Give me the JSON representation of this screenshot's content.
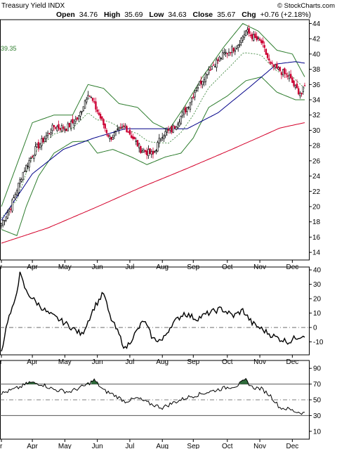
{
  "header": {
    "watermark": "© StockCharts.com",
    "ticker": "Treasury Yield INDX",
    "open_label": "Open",
    "open": "34.76",
    "high_label": "High",
    "high": "35.69",
    "low_label": "Low",
    "low": "34.63",
    "close_label": "Close",
    "close": "35.67",
    "chg_label": "Chg",
    "chg": "+0.76 (+2.18%)",
    "left_marker": "39.35"
  },
  "colors": {
    "up_candle": "#000000",
    "down_candle": "#cc0033",
    "bollinger": "#2e7d2e",
    "ma_mid": "#000088",
    "ma_long": "#d4002a",
    "indicator": "#000000",
    "rsi_fill": "#2e6b3a"
  },
  "chart_data": [
    {
      "type": "candlestick",
      "title": "Treasury Yield INDX",
      "y_ticks": [
        14,
        16,
        18,
        20,
        22,
        24,
        26,
        28,
        30,
        32,
        34,
        36,
        38,
        40,
        42,
        44
      ],
      "ylim": [
        13,
        44.5
      ],
      "x_ticks": [
        "Mar",
        "Apr",
        "May",
        "Jun",
        "Jul",
        "Aug",
        "Sep",
        "Oct",
        "Nov",
        "Dec"
      ],
      "close_keypoints": [
        [
          0,
          17.8
        ],
        [
          6,
          20
        ],
        [
          14,
          24.5
        ],
        [
          22,
          27.5
        ],
        [
          34,
          30.5
        ],
        [
          42,
          30.3
        ],
        [
          50,
          31.7
        ],
        [
          56,
          35
        ],
        [
          62,
          32.5
        ],
        [
          70,
          29
        ],
        [
          80,
          30.5
        ],
        [
          90,
          27.5
        ],
        [
          98,
          26.8
        ],
        [
          104,
          29.5
        ],
        [
          110,
          30
        ],
        [
          120,
          33
        ],
        [
          126,
          35.5
        ],
        [
          134,
          38
        ],
        [
          144,
          40
        ],
        [
          152,
          41
        ],
        [
          158,
          43
        ],
        [
          164,
          42
        ],
        [
          168,
          41.5
        ],
        [
          174,
          38.5
        ],
        [
          180,
          37.8
        ],
        [
          186,
          37
        ],
        [
          190,
          35.5
        ],
        [
          194,
          34.8
        ],
        [
          196,
          35.67
        ]
      ],
      "bollinger_upper_keypoints": [
        [
          0,
          20
        ],
        [
          20,
          31
        ],
        [
          34,
          32
        ],
        [
          46,
          32
        ],
        [
          56,
          36
        ],
        [
          66,
          35.5
        ],
        [
          76,
          33.5
        ],
        [
          88,
          33
        ],
        [
          98,
          31
        ],
        [
          108,
          30
        ],
        [
          118,
          33
        ],
        [
          130,
          37
        ],
        [
          144,
          41
        ],
        [
          156,
          44
        ],
        [
          166,
          43
        ],
        [
          178,
          40.5
        ],
        [
          188,
          40
        ],
        [
          196,
          37
        ]
      ],
      "bollinger_lower_keypoints": [
        [
          0,
          17
        ],
        [
          10,
          16.2
        ],
        [
          16,
          20
        ],
        [
          24,
          24
        ],
        [
          34,
          27
        ],
        [
          46,
          28.5
        ],
        [
          56,
          28.6
        ],
        [
          62,
          27
        ],
        [
          72,
          27.5
        ],
        [
          84,
          26.5
        ],
        [
          94,
          25.5
        ],
        [
          106,
          26.5
        ],
        [
          116,
          27
        ],
        [
          124,
          29
        ],
        [
          134,
          33
        ],
        [
          146,
          34.5
        ],
        [
          158,
          36.5
        ],
        [
          168,
          37
        ],
        [
          178,
          35
        ],
        [
          190,
          34
        ],
        [
          196,
          34
        ]
      ],
      "moving_avg_mid_keypoints": [
        [
          0,
          18.2
        ],
        [
          20,
          24.3
        ],
        [
          40,
          27.5
        ],
        [
          60,
          29
        ],
        [
          80,
          30.2
        ],
        [
          100,
          30.2
        ],
        [
          120,
          30.2
        ],
        [
          140,
          32.3
        ],
        [
          160,
          35.6
        ],
        [
          178,
          38.7
        ],
        [
          190,
          39
        ],
        [
          196,
          38.8
        ]
      ],
      "moving_avg_long_keypoints": [
        [
          0,
          15.2
        ],
        [
          30,
          17.2
        ],
        [
          60,
          19.8
        ],
        [
          90,
          22.5
        ],
        [
          120,
          25
        ],
        [
          150,
          27.6
        ],
        [
          180,
          30.3
        ],
        [
          196,
          31
        ]
      ]
    },
    {
      "type": "line",
      "y_ticks": [
        -10,
        0,
        10,
        20,
        30,
        40
      ],
      "reference_line": 0,
      "ylim": [
        -19,
        42
      ],
      "x_ticks": [
        "Mar",
        "Apr",
        "May",
        "Jun",
        "Jul",
        "Aug",
        "Sep",
        "Oct",
        "Nov",
        "Dec"
      ],
      "keypoints": [
        [
          0,
          -17
        ],
        [
          4,
          5
        ],
        [
          8,
          15
        ],
        [
          12,
          37
        ],
        [
          16,
          25
        ],
        [
          22,
          18
        ],
        [
          30,
          10
        ],
        [
          38,
          5
        ],
        [
          44,
          1
        ],
        [
          52,
          -5
        ],
        [
          60,
          14
        ],
        [
          66,
          24
        ],
        [
          70,
          8
        ],
        [
          76,
          -5
        ],
        [
          80,
          -15
        ],
        [
          86,
          -5
        ],
        [
          92,
          5
        ],
        [
          98,
          -8
        ],
        [
          104,
          -9
        ],
        [
          110,
          2
        ],
        [
          118,
          10
        ],
        [
          126,
          6
        ],
        [
          134,
          10
        ],
        [
          142,
          13
        ],
        [
          150,
          8
        ],
        [
          156,
          12
        ],
        [
          162,
          3
        ],
        [
          168,
          -1
        ],
        [
          174,
          -5
        ],
        [
          180,
          -8
        ],
        [
          186,
          -10
        ],
        [
          190,
          -7
        ],
        [
          196,
          -5
        ]
      ]
    },
    {
      "type": "line",
      "y_ticks": [
        10,
        30,
        50,
        70,
        90
      ],
      "reference_lines": [
        30,
        50,
        70
      ],
      "ylim": [
        0,
        100
      ],
      "x_ticks": [
        "Mar",
        "Apr",
        "May",
        "Jun",
        "Jul",
        "Aug",
        "Sep",
        "Oct",
        "Nov",
        "Dec"
      ],
      "keypoints": [
        [
          0,
          58
        ],
        [
          6,
          62
        ],
        [
          12,
          66
        ],
        [
          18,
          72
        ],
        [
          26,
          70
        ],
        [
          34,
          63
        ],
        [
          44,
          60
        ],
        [
          54,
          68
        ],
        [
          60,
          75
        ],
        [
          66,
          62
        ],
        [
          72,
          57
        ],
        [
          80,
          48
        ],
        [
          88,
          52
        ],
        [
          96,
          45
        ],
        [
          104,
          40
        ],
        [
          112,
          47
        ],
        [
          120,
          53
        ],
        [
          128,
          57
        ],
        [
          136,
          61
        ],
        [
          144,
          65
        ],
        [
          152,
          68
        ],
        [
          158,
          75
        ],
        [
          162,
          66
        ],
        [
          168,
          64
        ],
        [
          174,
          55
        ],
        [
          180,
          40
        ],
        [
          186,
          38
        ],
        [
          190,
          35
        ],
        [
          196,
          33
        ]
      ]
    }
  ]
}
